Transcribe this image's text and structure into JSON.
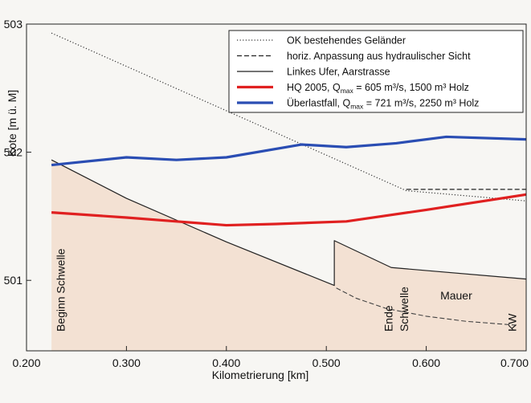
{
  "chart_data": {
    "type": "line",
    "xlabel": "Kilometrierung [km]",
    "ylabel": "Kote [m ü. M]",
    "xlim": [
      0.2,
      0.7
    ],
    "ylim": [
      500.45,
      503.0
    ],
    "grid": false,
    "legend_position": "top-right",
    "x_ticks": [
      {
        "value": 0.2,
        "label": "0.200"
      },
      {
        "value": 0.3,
        "label": "0.300"
      },
      {
        "value": 0.4,
        "label": "0.400"
      },
      {
        "value": 0.5,
        "label": "0.500"
      },
      {
        "value": 0.6,
        "label": "0.600"
      },
      {
        "value": 0.7,
        "label": "0.700"
      }
    ],
    "y_ticks": [
      {
        "value": 501,
        "label": "501"
      },
      {
        "value": 502,
        "label": "502"
      },
      {
        "value": 503,
        "label": "503"
      }
    ],
    "series": [
      {
        "name": "OK bestehendes Geländer",
        "style": "dotted",
        "color": "#333333",
        "points": [
          [
            0.225,
            502.93
          ],
          [
            0.58,
            501.7
          ],
          [
            0.7,
            501.62
          ]
        ]
      },
      {
        "name": "horiz. Anpassung aus hydraulischer Sicht",
        "style": "dashed",
        "color": "#222222",
        "points": [
          [
            0.58,
            501.71
          ],
          [
            0.7,
            501.71
          ]
        ]
      },
      {
        "name": "Linkes Ufer, Aarstrasse",
        "style": "solid",
        "color": "#222222",
        "points": [
          [
            0.225,
            501.94
          ],
          [
            0.3,
            501.64
          ],
          [
            0.4,
            501.3
          ],
          [
            0.508,
            500.96
          ],
          [
            0.508,
            501.31
          ],
          [
            0.565,
            501.1
          ],
          [
            0.7,
            501.01
          ]
        ]
      },
      {
        "name": "HQ 2005, Q",
        "name_sub": "max",
        "name_rest": " = 605 m³/s, 1500 m³ Holz",
        "style": "solid",
        "color": "#e02020",
        "points": [
          [
            0.225,
            501.53
          ],
          [
            0.3,
            501.49
          ],
          [
            0.35,
            501.46
          ],
          [
            0.4,
            501.43
          ],
          [
            0.45,
            501.44
          ],
          [
            0.52,
            501.46
          ],
          [
            0.6,
            501.55
          ],
          [
            0.7,
            501.67
          ]
        ]
      },
      {
        "name": "Überlastfall, Q",
        "name_sub": "max",
        "name_rest": " = 721 m³/s, 2250 m³ Holz",
        "style": "solid",
        "color": "#2a4db3",
        "points": [
          [
            0.225,
            501.9
          ],
          [
            0.3,
            501.96
          ],
          [
            0.35,
            501.94
          ],
          [
            0.4,
            501.96
          ],
          [
            0.475,
            502.06
          ],
          [
            0.52,
            502.04
          ],
          [
            0.57,
            502.07
          ],
          [
            0.62,
            502.12
          ],
          [
            0.7,
            502.1
          ]
        ]
      }
    ],
    "extra_lines": [
      {
        "style": "dashed",
        "color": "#444444",
        "points": [
          [
            0.51,
            500.94
          ],
          [
            0.53,
            500.86
          ],
          [
            0.56,
            500.78
          ],
          [
            0.6,
            500.72
          ],
          [
            0.64,
            500.68
          ],
          [
            0.69,
            500.65
          ]
        ]
      }
    ],
    "fill_region": {
      "color": "#f3e1d3",
      "points": [
        [
          0.225,
          501.94
        ],
        [
          0.3,
          501.64
        ],
        [
          0.4,
          501.3
        ],
        [
          0.508,
          500.96
        ],
        [
          0.508,
          501.31
        ],
        [
          0.565,
          501.1
        ],
        [
          0.7,
          501.01
        ]
      ]
    },
    "annotations": [
      {
        "text": "Beginn Schwelle",
        "x": 0.238,
        "y": 500.6,
        "rotation": -90
      },
      {
        "text": "Ende",
        "x": 0.566,
        "y": 500.6,
        "rotation": -90
      },
      {
        "text": "Schwelle",
        "x": 0.582,
        "y": 500.6,
        "rotation": -90
      },
      {
        "text": "Mauer",
        "x": 0.63,
        "y": 500.85,
        "rotation": 0
      },
      {
        "text": "KW",
        "x": 0.69,
        "y": 500.6,
        "rotation": -90
      }
    ]
  }
}
